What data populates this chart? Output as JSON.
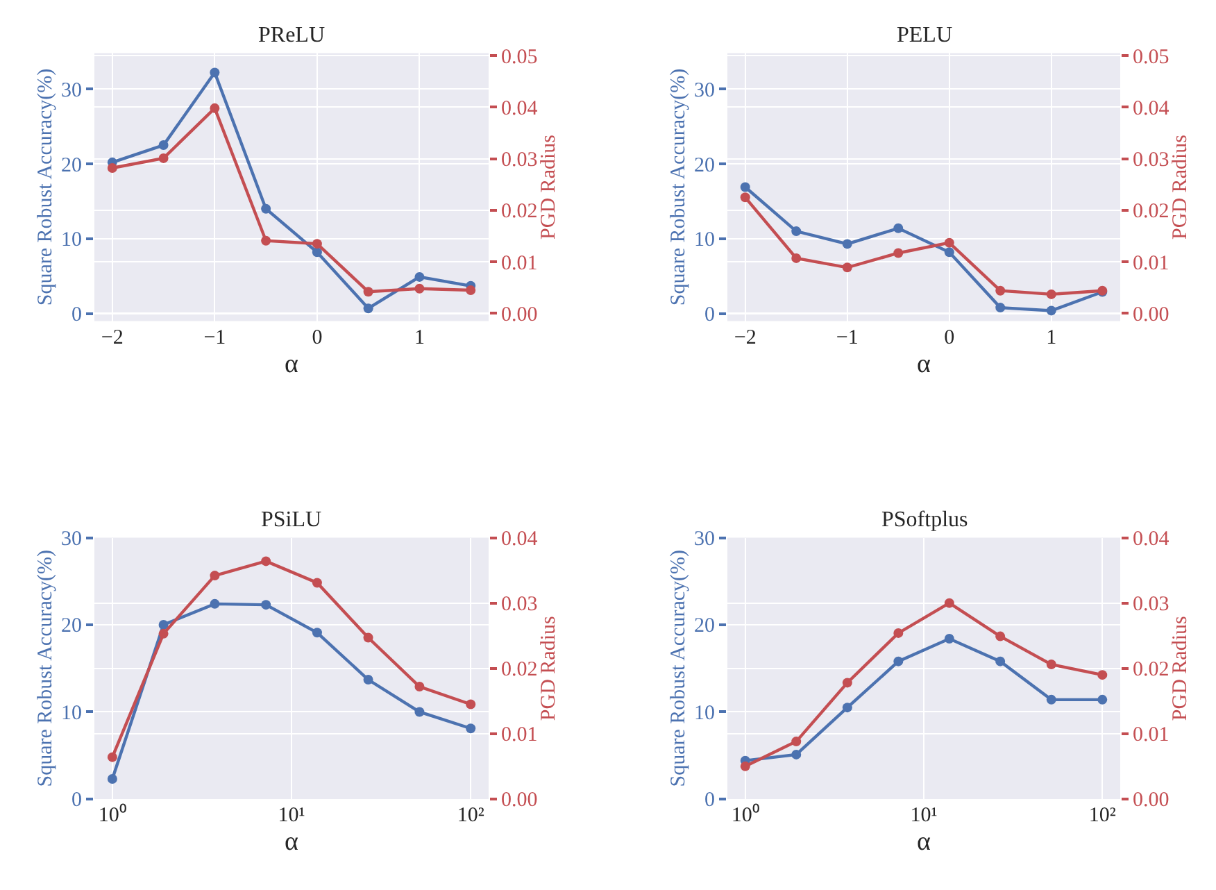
{
  "chart_data": [
    {
      "type": "line",
      "title": "PReLU",
      "xlabel": "α",
      "ylabel": "Square Robust Accuracy(%)",
      "y2label": "PGD Radius",
      "grid": true,
      "marker": "circle",
      "x": [
        -2,
        -1.5,
        -1,
        -0.5,
        0,
        0.5,
        1,
        1.5
      ],
      "xlim": [
        -2.175,
        1.675
      ],
      "xticks": [
        {
          "value": -2,
          "label": "−2"
        },
        {
          "value": -1,
          "label": "−1"
        },
        0,
        1
      ],
      "ylim": [
        -1,
        34.8
      ],
      "yticks": [
        0,
        10,
        20,
        30
      ],
      "y2lim": [
        -0.0015,
        0.0505
      ],
      "y2ticks": [
        {
          "value": 0,
          "label": "0.00"
        },
        {
          "value": 0.01,
          "label": "0.01"
        },
        {
          "value": 0.02,
          "label": "0.02"
        },
        {
          "value": 0.03,
          "label": "0.03"
        },
        {
          "value": 0.04,
          "label": "0.04"
        },
        {
          "value": 0.05,
          "label": "0.05"
        }
      ],
      "series": [
        {
          "color": "#4c72b0",
          "values": [
            20.2,
            22.5,
            32.2,
            14.0,
            8.2,
            0.7,
            4.9,
            3.7
          ]
        },
        {
          "color": "#c44e52",
          "axis": "y2",
          "values": [
            0.0282,
            0.0301,
            0.0398,
            0.0141,
            0.0135,
            0.0042,
            0.0048,
            0.0045
          ]
        }
      ]
    },
    {
      "type": "line",
      "title": "PELU",
      "xlabel": "α",
      "ylabel": "Square Robust Accuracy(%)",
      "y2label": "PGD Radius",
      "grid": true,
      "marker": "circle",
      "x": [
        -2,
        -1.5,
        -1,
        -0.5,
        0,
        0.5,
        1,
        1.5
      ],
      "xlim": [
        -2.175,
        1.675
      ],
      "xticks": [
        {
          "value": -2,
          "label": "−2"
        },
        {
          "value": -1,
          "label": "−1"
        },
        0,
        1
      ],
      "ylim": [
        -1,
        34.8
      ],
      "yticks": [
        0,
        10,
        20,
        30
      ],
      "y2lim": [
        -0.0015,
        0.0505
      ],
      "y2ticks": [
        {
          "value": 0,
          "label": "0.00"
        },
        {
          "value": 0.01,
          "label": "0.01"
        },
        {
          "value": 0.02,
          "label": "0.02"
        },
        {
          "value": 0.03,
          "label": "0.03"
        },
        {
          "value": 0.04,
          "label": "0.04"
        },
        {
          "value": 0.05,
          "label": "0.05"
        }
      ],
      "series": [
        {
          "color": "#4c72b0",
          "values": [
            16.9,
            11.0,
            9.3,
            11.4,
            8.2,
            0.8,
            0.4,
            2.9
          ]
        },
        {
          "color": "#c44e52",
          "axis": "y2",
          "values": [
            0.0225,
            0.0107,
            0.0089,
            0.0117,
            0.0137,
            0.0044,
            0.0037,
            0.0044
          ]
        }
      ]
    },
    {
      "type": "line",
      "title": "PSiLU",
      "xlabel": "α",
      "ylabel": "Square Robust Accuracy(%)",
      "y2label": "PGD Radius",
      "grid": true,
      "marker": "circle",
      "log": "x",
      "x": [
        1,
        1.93,
        3.73,
        7.2,
        13.9,
        26.8,
        51.8,
        100
      ],
      "xlim": [
        0.794,
        125.9
      ],
      "xticks": [
        {
          "value": 1,
          "label": "10⁰"
        },
        {
          "value": 10,
          "label": "10¹"
        },
        {
          "value": 100,
          "label": "10²"
        }
      ],
      "ylim": [
        0,
        30
      ],
      "yticks": [
        0,
        10,
        20,
        30
      ],
      "y2lim": [
        0,
        0.04
      ],
      "y2ticks": [
        {
          "value": 0,
          "label": "0.00"
        },
        {
          "value": 0.01,
          "label": "0.01"
        },
        {
          "value": 0.02,
          "label": "0.02"
        },
        {
          "value": 0.03,
          "label": "0.03"
        },
        {
          "value": 0.04,
          "label": "0.04"
        }
      ],
      "series": [
        {
          "color": "#4c72b0",
          "values": [
            2.3,
            20.0,
            22.4,
            22.3,
            19.1,
            13.7,
            10.0,
            8.1
          ]
        },
        {
          "color": "#c44e52",
          "axis": "y2",
          "values": [
            0.0064,
            0.0253,
            0.0342,
            0.0364,
            0.0331,
            0.0247,
            0.0172,
            0.0145
          ]
        }
      ]
    },
    {
      "type": "line",
      "title": "PSoftplus",
      "xlabel": "α",
      "ylabel": "Square Robust Accuracy(%)",
      "y2label": "PGD Radius",
      "grid": true,
      "marker": "circle",
      "log": "x",
      "x": [
        1,
        1.93,
        3.73,
        7.2,
        13.9,
        26.8,
        51.8,
        100
      ],
      "xlim": [
        0.794,
        125.9
      ],
      "xticks": [
        {
          "value": 1,
          "label": "10⁰"
        },
        {
          "value": 10,
          "label": "10¹"
        },
        {
          "value": 100,
          "label": "10²"
        }
      ],
      "ylim": [
        0,
        30
      ],
      "yticks": [
        0,
        10,
        20,
        30
      ],
      "y2lim": [
        0,
        0.04
      ],
      "y2ticks": [
        {
          "value": 0,
          "label": "0.00"
        },
        {
          "value": 0.01,
          "label": "0.01"
        },
        {
          "value": 0.02,
          "label": "0.02"
        },
        {
          "value": 0.03,
          "label": "0.03"
        },
        {
          "value": 0.04,
          "label": "0.04"
        }
      ],
      "series": [
        {
          "color": "#4c72b0",
          "values": [
            4.4,
            5.1,
            10.5,
            15.8,
            18.4,
            15.8,
            11.4,
            11.4
          ]
        },
        {
          "color": "#c44e52",
          "axis": "y2",
          "values": [
            0.005,
            0.0088,
            0.0178,
            0.0254,
            0.03,
            0.0249,
            0.0206,
            0.019
          ]
        }
      ]
    }
  ]
}
